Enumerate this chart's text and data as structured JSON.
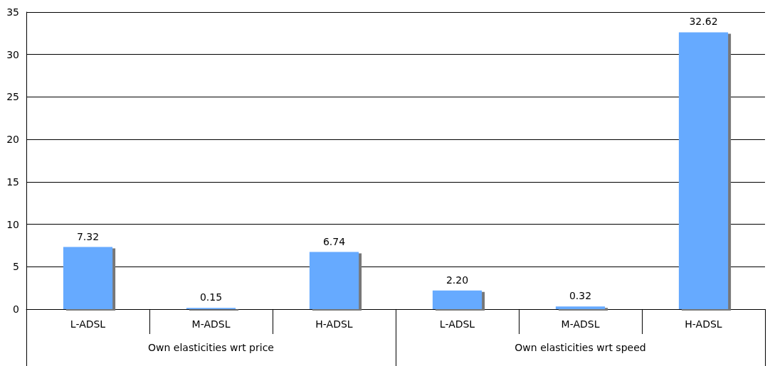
{
  "chart_data": {
    "type": "bar",
    "categories": [
      "L-ADSL",
      "M-ADSL",
      "H-ADSL",
      "L-ADSL",
      "M-ADSL",
      "H-ADSL"
    ],
    "values": [
      7.32,
      0.15,
      6.74,
      2.2,
      0.32,
      32.62
    ],
    "value_labels": [
      "7.32",
      "0.15",
      "6.74",
      "2.20",
      "0.32",
      "32.62"
    ],
    "color": "#66aaff",
    "ylim": [
      0,
      35
    ],
    "yticks": [
      0,
      5,
      10,
      15,
      20,
      25,
      30,
      35
    ],
    "grid": "y",
    "annotations": [
      "Own elasticities wrt price",
      "Own elasticities wrt speed"
    ]
  }
}
